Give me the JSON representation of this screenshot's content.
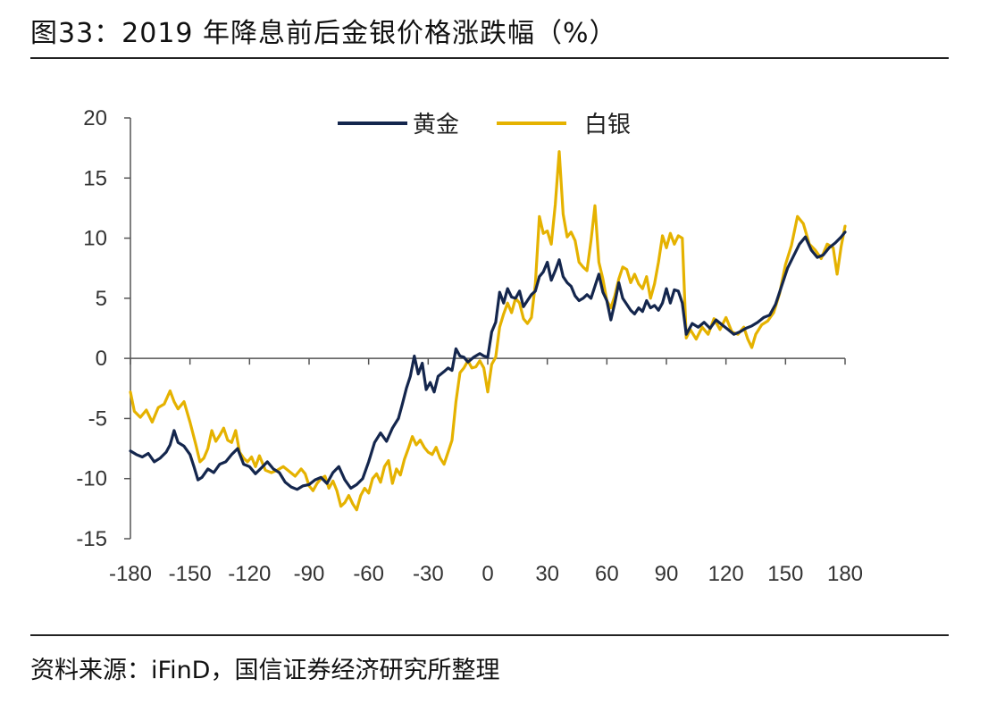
{
  "figure": {
    "title": "图33：2019 年降息前后金银价格涨跌幅（%）",
    "source": "资料来源：iFinD，国信证券经济研究所整理"
  },
  "chart_data": {
    "type": "line",
    "title": "图33：2019 年降息前后金银价格涨跌幅（%）",
    "xlabel": "",
    "ylabel": "",
    "xlim": [
      -180,
      180
    ],
    "ylim": [
      -15,
      20
    ],
    "xticks": [
      -180,
      -150,
      -120,
      -90,
      -60,
      -30,
      0,
      30,
      60,
      90,
      120,
      150,
      180
    ],
    "yticks": [
      -15,
      -10,
      -5,
      0,
      5,
      10,
      15,
      20
    ],
    "grid": false,
    "legend": "top-center",
    "series": [
      {
        "name": "黄金",
        "color": "#14264d",
        "points": [
          [
            -180,
            -7.7
          ],
          [
            -177,
            -8.0
          ],
          [
            -174,
            -8.2
          ],
          [
            -171,
            -7.9
          ],
          [
            -168,
            -8.6
          ],
          [
            -165,
            -8.3
          ],
          [
            -162,
            -7.8
          ],
          [
            -160,
            -7.2
          ],
          [
            -158,
            -6.0
          ],
          [
            -156,
            -7.0
          ],
          [
            -153,
            -7.3
          ],
          [
            -150,
            -8.0
          ],
          [
            -148,
            -9.0
          ],
          [
            -146,
            -10.1
          ],
          [
            -144,
            -9.9
          ],
          [
            -141,
            -9.2
          ],
          [
            -138,
            -9.5
          ],
          [
            -135,
            -8.8
          ],
          [
            -132,
            -8.6
          ],
          [
            -129,
            -8.0
          ],
          [
            -126,
            -7.5
          ],
          [
            -123,
            -8.8
          ],
          [
            -120,
            -9.0
          ],
          [
            -117,
            -9.6
          ],
          [
            -114,
            -9.1
          ],
          [
            -111,
            -8.6
          ],
          [
            -108,
            -9.2
          ],
          [
            -105,
            -9.5
          ],
          [
            -102,
            -10.3
          ],
          [
            -99,
            -10.7
          ],
          [
            -96,
            -10.9
          ],
          [
            -93,
            -10.6
          ],
          [
            -90,
            -10.5
          ],
          [
            -87,
            -10.1
          ],
          [
            -84,
            -9.9
          ],
          [
            -81,
            -10.4
          ],
          [
            -78,
            -9.5
          ],
          [
            -75,
            -9.0
          ],
          [
            -72,
            -10.1
          ],
          [
            -69,
            -10.8
          ],
          [
            -66,
            -10.5
          ],
          [
            -63,
            -10.0
          ],
          [
            -60,
            -8.6
          ],
          [
            -57,
            -7.0
          ],
          [
            -54,
            -6.2
          ],
          [
            -51,
            -6.9
          ],
          [
            -48,
            -5.8
          ],
          [
            -45,
            -5.0
          ],
          [
            -43,
            -3.8
          ],
          [
            -41,
            -2.5
          ],
          [
            -39,
            -1.5
          ],
          [
            -37,
            0.2
          ],
          [
            -35,
            -1.3
          ],
          [
            -33,
            -0.4
          ],
          [
            -31,
            -2.6
          ],
          [
            -29,
            -2.0
          ],
          [
            -27,
            -2.8
          ],
          [
            -25,
            -1.5
          ],
          [
            -22,
            -1.1
          ],
          [
            -20,
            -0.8
          ],
          [
            -18,
            -1.0
          ],
          [
            -16,
            0.8
          ],
          [
            -14,
            0.2
          ],
          [
            -12,
            0.1
          ],
          [
            -10,
            -0.3
          ],
          [
            -7,
            0.1
          ],
          [
            -4,
            0.4
          ],
          [
            -2,
            0.2
          ],
          [
            0,
            0.1
          ],
          [
            2,
            2.2
          ],
          [
            4,
            3.0
          ],
          [
            6,
            5.5
          ],
          [
            8,
            4.6
          ],
          [
            10,
            5.8
          ],
          [
            12,
            5.1
          ],
          [
            14,
            5.0
          ],
          [
            16,
            5.6
          ],
          [
            18,
            4.3
          ],
          [
            20,
            4.8
          ],
          [
            22,
            5.3
          ],
          [
            24,
            5.6
          ],
          [
            26,
            6.8
          ],
          [
            28,
            7.2
          ],
          [
            30,
            8.0
          ],
          [
            32,
            6.5
          ],
          [
            34,
            7.3
          ],
          [
            36,
            8.2
          ],
          [
            38,
            6.8
          ],
          [
            40,
            6.3
          ],
          [
            42,
            6.0
          ],
          [
            44,
            5.2
          ],
          [
            46,
            4.8
          ],
          [
            48,
            5.0
          ],
          [
            50,
            5.3
          ],
          [
            52,
            5.0
          ],
          [
            54,
            6.0
          ],
          [
            56,
            7.0
          ],
          [
            58,
            5.5
          ],
          [
            60,
            4.8
          ],
          [
            62,
            3.2
          ],
          [
            64,
            4.6
          ],
          [
            66,
            6.3
          ],
          [
            68,
            5.0
          ],
          [
            70,
            4.5
          ],
          [
            72,
            4.0
          ],
          [
            74,
            3.7
          ],
          [
            76,
            4.2
          ],
          [
            78,
            3.9
          ],
          [
            80,
            4.8
          ],
          [
            82,
            4.2
          ],
          [
            84,
            4.4
          ],
          [
            86,
            4.0
          ],
          [
            88,
            4.6
          ],
          [
            90,
            5.8
          ],
          [
            92,
            4.6
          ],
          [
            94,
            5.7
          ],
          [
            96,
            5.6
          ],
          [
            98,
            4.6
          ],
          [
            100,
            2.0
          ],
          [
            103,
            2.9
          ],
          [
            106,
            2.6
          ],
          [
            109,
            3.0
          ],
          [
            112,
            2.5
          ],
          [
            115,
            3.2
          ],
          [
            118,
            2.8
          ],
          [
            121,
            2.4
          ],
          [
            124,
            2.0
          ],
          [
            127,
            2.2
          ],
          [
            130,
            2.5
          ],
          [
            133,
            2.7
          ],
          [
            136,
            3.0
          ],
          [
            139,
            3.4
          ],
          [
            142,
            3.6
          ],
          [
            145,
            4.5
          ],
          [
            148,
            6.0
          ],
          [
            151,
            7.5
          ],
          [
            154,
            8.5
          ],
          [
            157,
            9.5
          ],
          [
            160,
            10.1
          ],
          [
            163,
            9.0
          ],
          [
            166,
            8.4
          ],
          [
            169,
            8.6
          ],
          [
            172,
            9.2
          ],
          [
            175,
            9.6
          ],
          [
            178,
            10.1
          ],
          [
            180,
            10.5
          ]
        ]
      },
      {
        "name": "白银",
        "color": "#e5b200",
        "points": [
          [
            -180,
            -2.8
          ],
          [
            -178,
            -4.4
          ],
          [
            -175,
            -4.9
          ],
          [
            -172,
            -4.3
          ],
          [
            -169,
            -5.3
          ],
          [
            -166,
            -4.1
          ],
          [
            -163,
            -3.8
          ],
          [
            -160,
            -2.7
          ],
          [
            -158,
            -3.6
          ],
          [
            -156,
            -4.2
          ],
          [
            -153,
            -3.6
          ],
          [
            -150,
            -5.3
          ],
          [
            -147,
            -7.2
          ],
          [
            -145,
            -8.6
          ],
          [
            -143,
            -8.3
          ],
          [
            -141,
            -7.5
          ],
          [
            -139,
            -6.0
          ],
          [
            -137,
            -6.9
          ],
          [
            -135,
            -6.4
          ],
          [
            -133,
            -5.8
          ],
          [
            -131,
            -6.8
          ],
          [
            -129,
            -7.0
          ],
          [
            -127,
            -6.0
          ],
          [
            -125,
            -7.8
          ],
          [
            -123,
            -8.3
          ],
          [
            -121,
            -8.6
          ],
          [
            -119,
            -8.2
          ],
          [
            -117,
            -9.0
          ],
          [
            -115,
            -8.1
          ],
          [
            -112,
            -9.3
          ],
          [
            -109,
            -9.5
          ],
          [
            -106,
            -9.3
          ],
          [
            -103,
            -9.0
          ],
          [
            -100,
            -9.4
          ],
          [
            -97,
            -9.8
          ],
          [
            -94,
            -9.2
          ],
          [
            -92,
            -9.6
          ],
          [
            -90,
            -10.6
          ],
          [
            -88,
            -11.0
          ],
          [
            -86,
            -10.4
          ],
          [
            -84,
            -10.0
          ],
          [
            -82,
            -9.8
          ],
          [
            -80,
            -10.8
          ],
          [
            -78,
            -10.2
          ],
          [
            -76,
            -11.0
          ],
          [
            -74,
            -12.3
          ],
          [
            -72,
            -12.0
          ],
          [
            -70,
            -11.4
          ],
          [
            -68,
            -12.1
          ],
          [
            -66,
            -12.6
          ],
          [
            -64,
            -11.4
          ],
          [
            -62,
            -10.8
          ],
          [
            -60,
            -11.2
          ],
          [
            -58,
            -10.0
          ],
          [
            -56,
            -9.6
          ],
          [
            -54,
            -10.3
          ],
          [
            -52,
            -9.0
          ],
          [
            -50,
            -8.5
          ],
          [
            -48,
            -10.4
          ],
          [
            -46,
            -9.2
          ],
          [
            -44,
            -9.7
          ],
          [
            -42,
            -8.4
          ],
          [
            -40,
            -7.5
          ],
          [
            -38,
            -6.5
          ],
          [
            -36,
            -7.2
          ],
          [
            -34,
            -6.8
          ],
          [
            -32,
            -7.4
          ],
          [
            -30,
            -7.8
          ],
          [
            -28,
            -8.0
          ],
          [
            -26,
            -7.4
          ],
          [
            -24,
            -8.3
          ],
          [
            -22,
            -8.8
          ],
          [
            -20,
            -7.8
          ],
          [
            -18,
            -6.8
          ],
          [
            -16,
            -3.6
          ],
          [
            -14,
            -1.2
          ],
          [
            -12,
            -0.8
          ],
          [
            -10,
            -0.2
          ],
          [
            -8,
            -0.8
          ],
          [
            -6,
            -0.7
          ],
          [
            -4,
            -0.2
          ],
          [
            -2,
            -0.8
          ],
          [
            0,
            -2.8
          ],
          [
            2,
            -0.5
          ],
          [
            4,
            0.1
          ],
          [
            6,
            2.6
          ],
          [
            8,
            3.7
          ],
          [
            10,
            4.6
          ],
          [
            12,
            3.8
          ],
          [
            14,
            5.0
          ],
          [
            16,
            4.6
          ],
          [
            18,
            3.3
          ],
          [
            20,
            2.9
          ],
          [
            22,
            3.4
          ],
          [
            24,
            6.2
          ],
          [
            26,
            11.8
          ],
          [
            28,
            10.4
          ],
          [
            30,
            10.6
          ],
          [
            32,
            9.5
          ],
          [
            34,
            12.8
          ],
          [
            36,
            17.2
          ],
          [
            38,
            12.0
          ],
          [
            40,
            10.1
          ],
          [
            42,
            10.5
          ],
          [
            44,
            9.8
          ],
          [
            46,
            8.0
          ],
          [
            48,
            7.6
          ],
          [
            50,
            7.3
          ],
          [
            52,
            9.8
          ],
          [
            54,
            12.7
          ],
          [
            56,
            8.0
          ],
          [
            58,
            6.6
          ],
          [
            60,
            4.8
          ],
          [
            62,
            4.2
          ],
          [
            64,
            5.2
          ],
          [
            66,
            6.6
          ],
          [
            68,
            7.6
          ],
          [
            70,
            7.4
          ],
          [
            72,
            6.3
          ],
          [
            74,
            7.0
          ],
          [
            76,
            6.2
          ],
          [
            78,
            5.8
          ],
          [
            80,
            6.8
          ],
          [
            82,
            5.0
          ],
          [
            84,
            6.2
          ],
          [
            86,
            8.0
          ],
          [
            88,
            10.2
          ],
          [
            90,
            9.2
          ],
          [
            92,
            10.4
          ],
          [
            94,
            9.5
          ],
          [
            96,
            10.2
          ],
          [
            98,
            10.0
          ],
          [
            100,
            1.7
          ],
          [
            102,
            2.4
          ],
          [
            105,
            1.6
          ],
          [
            108,
            2.6
          ],
          [
            111,
            2.0
          ],
          [
            114,
            3.3
          ],
          [
            117,
            2.4
          ],
          [
            120,
            3.4
          ],
          [
            123,
            2.2
          ],
          [
            126,
            2.0
          ],
          [
            129,
            2.6
          ],
          [
            131,
            1.6
          ],
          [
            133,
            0.9
          ],
          [
            135,
            2.0
          ],
          [
            138,
            2.8
          ],
          [
            141,
            3.1
          ],
          [
            144,
            3.8
          ],
          [
            147,
            5.4
          ],
          [
            150,
            7.8
          ],
          [
            153,
            9.4
          ],
          [
            156,
            11.8
          ],
          [
            159,
            11.2
          ],
          [
            162,
            9.5
          ],
          [
            165,
            9.0
          ],
          [
            168,
            8.3
          ],
          [
            171,
            9.5
          ],
          [
            174,
            9.2
          ],
          [
            176,
            7.0
          ],
          [
            178,
            9.3
          ],
          [
            180,
            11.0
          ]
        ]
      }
    ]
  }
}
